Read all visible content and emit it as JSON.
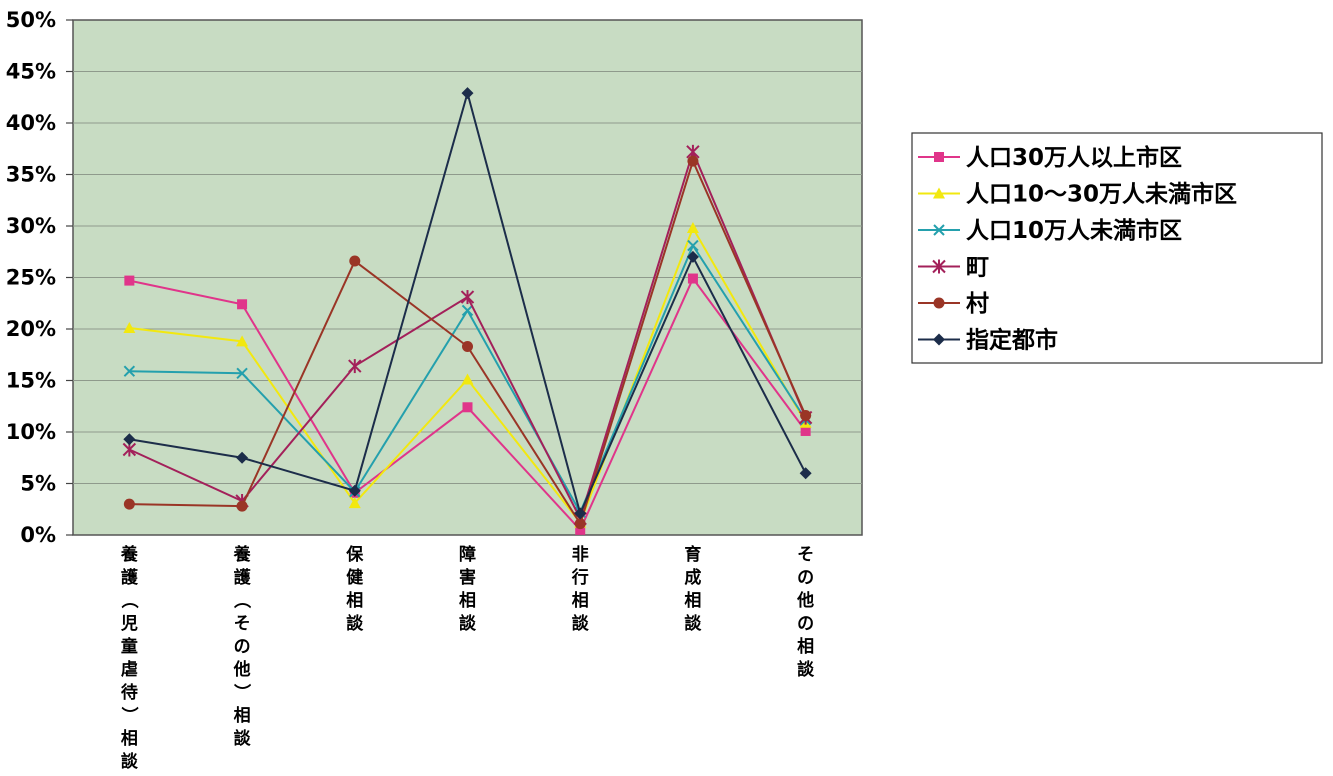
{
  "chart_data": {
    "type": "line",
    "title": "",
    "xlabel": "",
    "ylabel": "",
    "ylim": [
      0,
      50
    ],
    "y_tick_step": 5,
    "y_tick_labels": [
      "0%",
      "5%",
      "10%",
      "15%",
      "20%",
      "25%",
      "30%",
      "35%",
      "40%",
      "45%",
      "50%"
    ],
    "grid": true,
    "legend_position": "right",
    "categories": [
      "養護（児童虐待）相談",
      "養護（その他）相談",
      "保健相談",
      "障害相談",
      "非行相談",
      "育成相談",
      "その他の相談"
    ],
    "series": [
      {
        "name": "人口30万人以上市区",
        "color": "#e0358a",
        "marker": "square",
        "values": [
          24.7,
          22.4,
          4.1,
          12.4,
          0.5,
          24.9,
          10.1
        ]
      },
      {
        "name": "人口10～30万人未満市区",
        "color": "#f2e80f",
        "marker": "triangle",
        "values": [
          20.1,
          18.8,
          3.1,
          15.1,
          1.2,
          29.8,
          10.9
        ]
      },
      {
        "name": "人口10万人未満市区",
        "color": "#24a0ad",
        "marker": "x",
        "values": [
          15.9,
          15.7,
          4.2,
          21.8,
          2.2,
          28.1,
          11.2
        ]
      },
      {
        "name": "町",
        "color": "#a3205a",
        "marker": "star",
        "values": [
          8.3,
          3.3,
          16.4,
          23.1,
          1.6,
          37.2,
          11.4
        ]
      },
      {
        "name": "村",
        "color": "#9a3526",
        "marker": "circle",
        "values": [
          3.0,
          2.8,
          26.6,
          18.3,
          1.1,
          36.3,
          11.6
        ]
      },
      {
        "name": "指定都市",
        "color": "#1c2d4a",
        "marker": "diamond",
        "values": [
          9.3,
          7.5,
          4.3,
          42.9,
          2.1,
          27.0,
          6.0
        ]
      }
    ]
  }
}
